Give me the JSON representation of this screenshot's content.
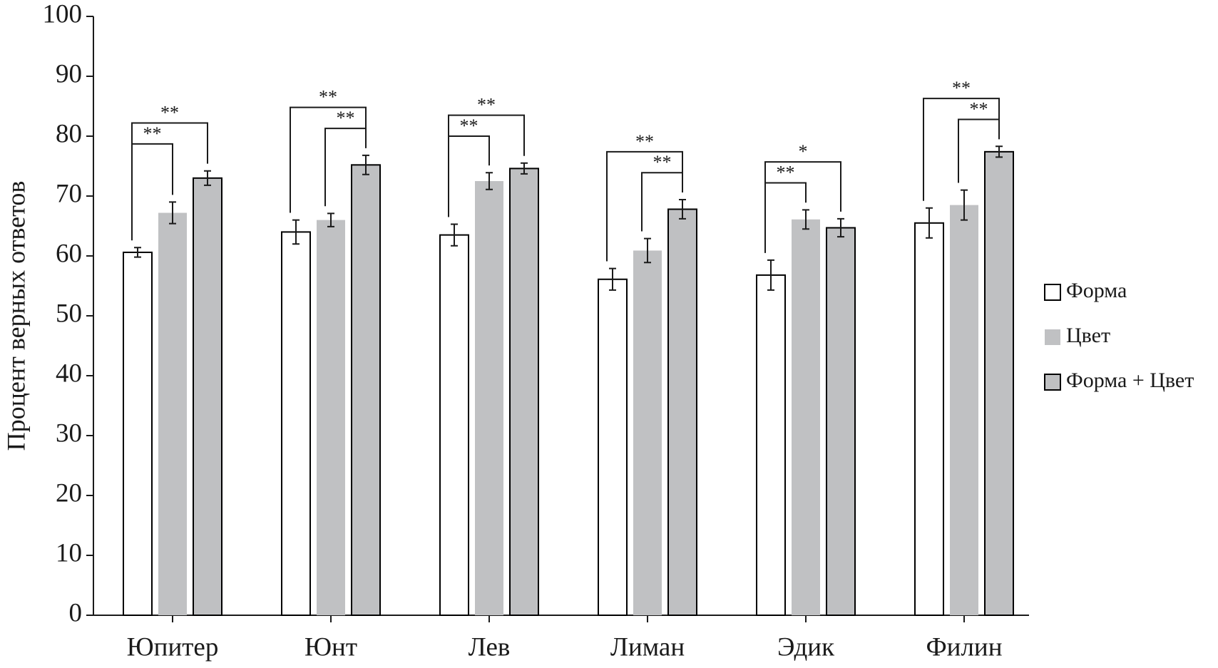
{
  "chart_data": {
    "type": "bar",
    "ylabel": "Процент верных ответов",
    "categories": [
      "Юпитер",
      "Юнт",
      "Лев",
      "Лиман",
      "Эдик",
      "Филин"
    ],
    "series": [
      {
        "name": "Форма",
        "color": "#ffffff",
        "stroke": "#000000",
        "values": [
          60.6,
          64.0,
          63.5,
          56.1,
          56.8,
          65.5
        ],
        "errors": [
          0.8,
          2.0,
          1.8,
          1.8,
          2.5,
          2.5
        ]
      },
      {
        "name": "Цвет",
        "color": "#c0c1c3",
        "values": [
          67.2,
          66.0,
          72.5,
          60.9,
          66.1,
          68.5
        ],
        "errors": [
          1.8,
          1.1,
          1.4,
          2.0,
          1.6,
          2.5
        ]
      },
      {
        "name": "Форма + Цвет",
        "color": "#bfc0c2",
        "stroke": "#000000",
        "values": [
          73.0,
          75.2,
          74.6,
          67.8,
          64.7,
          77.4
        ],
        "errors": [
          1.2,
          1.6,
          0.9,
          1.6,
          1.5,
          0.9
        ]
      }
    ],
    "significance": [
      {
        "category": 0,
        "from": 0,
        "to": 1,
        "label": "**"
      },
      {
        "category": 0,
        "from": 0,
        "to": 2,
        "label": "**"
      },
      {
        "category": 1,
        "from": 1,
        "to": 2,
        "label": "**"
      },
      {
        "category": 1,
        "from": 0,
        "to": 2,
        "label": "**"
      },
      {
        "category": 2,
        "from": 0,
        "to": 1,
        "label": "**"
      },
      {
        "category": 2,
        "from": 0,
        "to": 2,
        "label": "**"
      },
      {
        "category": 3,
        "from": 1,
        "to": 2,
        "label": "**"
      },
      {
        "category": 3,
        "from": 0,
        "to": 2,
        "label": "**"
      },
      {
        "category": 4,
        "from": 0,
        "to": 1,
        "label": "**"
      },
      {
        "category": 4,
        "from": 0,
        "to": 2,
        "label": "*"
      },
      {
        "category": 5,
        "from": 1,
        "to": 2,
        "label": "**"
      },
      {
        "category": 5,
        "from": 0,
        "to": 2,
        "label": "**"
      }
    ],
    "ylim": [
      0,
      100
    ],
    "yticks": [
      0,
      10,
      20,
      30,
      40,
      50,
      60,
      70,
      80,
      90,
      100
    ],
    "legend": "right",
    "grid": false
  }
}
